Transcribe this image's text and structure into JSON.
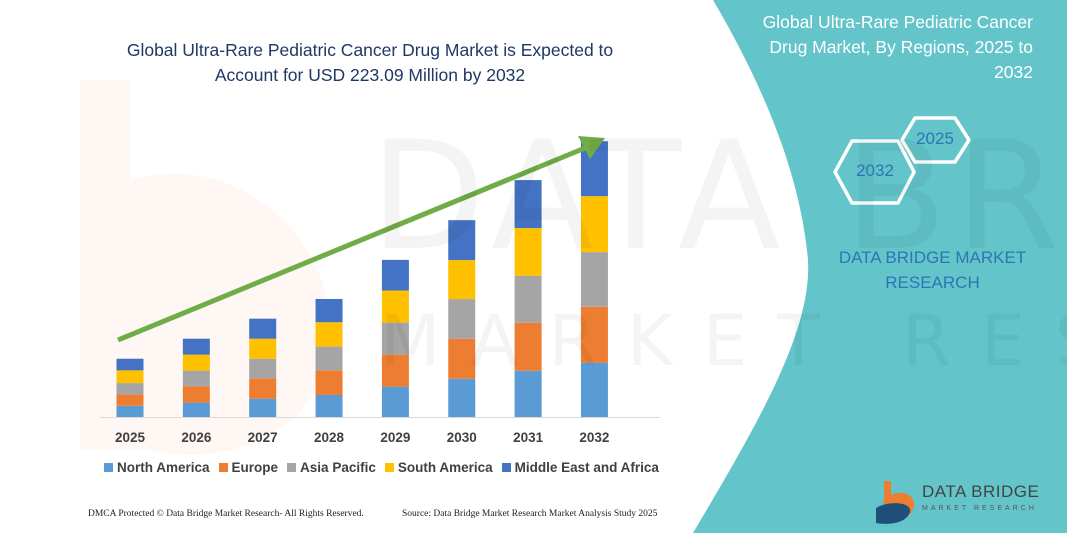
{
  "header": {
    "title_line1": "Global Ultra-Rare Pediatric Cancer Drug Market is Expected to",
    "title_line2": "Account for USD 223.09 Million by 2032"
  },
  "side_panel": {
    "title": "Global Ultra-Rare Pediatric Cancer Drug Market, By Regions, 2025 to 2032",
    "hex_start": "2025",
    "hex_end": "2032",
    "brand_line1": "DATA BRIDGE MARKET",
    "brand_line2": "RESEARCH",
    "panel_color": "#63c5c9"
  },
  "watermark": {
    "line1": "DATA BRIDGE",
    "line2": "MARKET RESEARCH"
  },
  "chart_data": {
    "type": "bar",
    "stacked": true,
    "categories": [
      "2025",
      "2026",
      "2027",
      "2028",
      "2029",
      "2030",
      "2031",
      "2032"
    ],
    "series": [
      {
        "name": "North America",
        "color": "#5b9bd5",
        "values": [
          9.1,
          11.6,
          14.8,
          17.8,
          24.5,
          30.9,
          37.4,
          43.9
        ]
      },
      {
        "name": "Europe",
        "color": "#ed7d31",
        "values": [
          9.2,
          13.3,
          16.5,
          20.0,
          25.9,
          32.3,
          38.8,
          45.2
        ]
      },
      {
        "name": "Asia Pacific",
        "color": "#a5a5a5",
        "values": [
          9.1,
          12.6,
          15.8,
          19.1,
          25.9,
          32.1,
          38.0,
          44.2
        ]
      },
      {
        "name": "South America",
        "color": "#ffc000",
        "values": [
          10.3,
          12.9,
          16.2,
          19.7,
          25.9,
          31.5,
          38.5,
          45.2
        ]
      },
      {
        "name": "Middle East and Africa",
        "color": "#4472c4",
        "values": [
          9.4,
          12.9,
          16.2,
          18.8,
          24.8,
          32.3,
          38.8,
          44.4
        ]
      }
    ],
    "ylim": [
      0,
      223.09
    ],
    "grid": false,
    "legend": "bottom",
    "trend_arrow_color": "#70ad47"
  },
  "footer": {
    "copyright": "DMCA Protected © Data Bridge Market Research- All Rights Reserved.",
    "source": "Source: Data Bridge Market Research Market Analysis Study 2025"
  },
  "logo": {
    "name": "DATA BRIDGE",
    "tagline": "MARKET RESEARCH"
  }
}
